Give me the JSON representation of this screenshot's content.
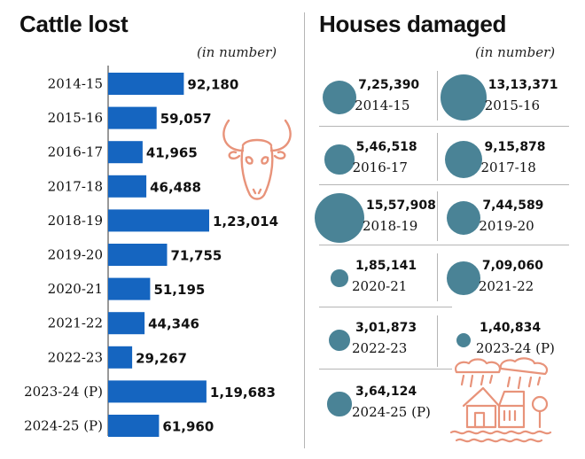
{
  "cattle_title": "Cattle lost",
  "cattle_unit": "(in number)",
  "houses_title": "Houses damaged",
  "houses_unit": "(in number)",
  "icons": [
    "cow-skull-icon",
    "damaged-house-rain-icon"
  ],
  "colors": {
    "bar": "#1565c0",
    "circle": "#4a8396",
    "icon": "#e8937a"
  },
  "chart_data": [
    {
      "type": "bar",
      "orientation": "horizontal",
      "title": "Cattle lost",
      "subtitle": "(in number)",
      "categories": [
        "2014-15",
        "2015-16",
        "2016-17",
        "2017-18",
        "2018-19",
        "2019-20",
        "2020-21",
        "2021-22",
        "2022-23",
        "2023-24 (P)",
        "2024-25 (P)"
      ],
      "values": [
        92180,
        59057,
        41965,
        46488,
        123014,
        71755,
        51195,
        44346,
        29267,
        119683,
        61960
      ],
      "value_labels": [
        "92,180",
        "59,057",
        "41,965",
        "46,488",
        "1,23,014",
        "71,755",
        "51,195",
        "44,346",
        "29,267",
        "1,19,683",
        "61,960"
      ]
    },
    {
      "type": "bubble",
      "title": "Houses damaged",
      "subtitle": "(in number)",
      "categories": [
        "2014-15",
        "2015-16",
        "2016-17",
        "2017-18",
        "2018-19",
        "2019-20",
        "2020-21",
        "2021-22",
        "2022-23",
        "2023-24 (P)",
        "2024-25 (P)"
      ],
      "values": [
        725390,
        1313371,
        546518,
        915878,
        1557908,
        744589,
        185141,
        709060,
        301873,
        140834,
        364124
      ],
      "value_labels": [
        "7,25,390",
        "13,13,371",
        "5,46,518",
        "9,15,878",
        "15,57,908",
        "7,44,589",
        "1,85,141",
        "7,09,060",
        "3,01,873",
        "1,40,834",
        "3,64,124"
      ]
    }
  ]
}
